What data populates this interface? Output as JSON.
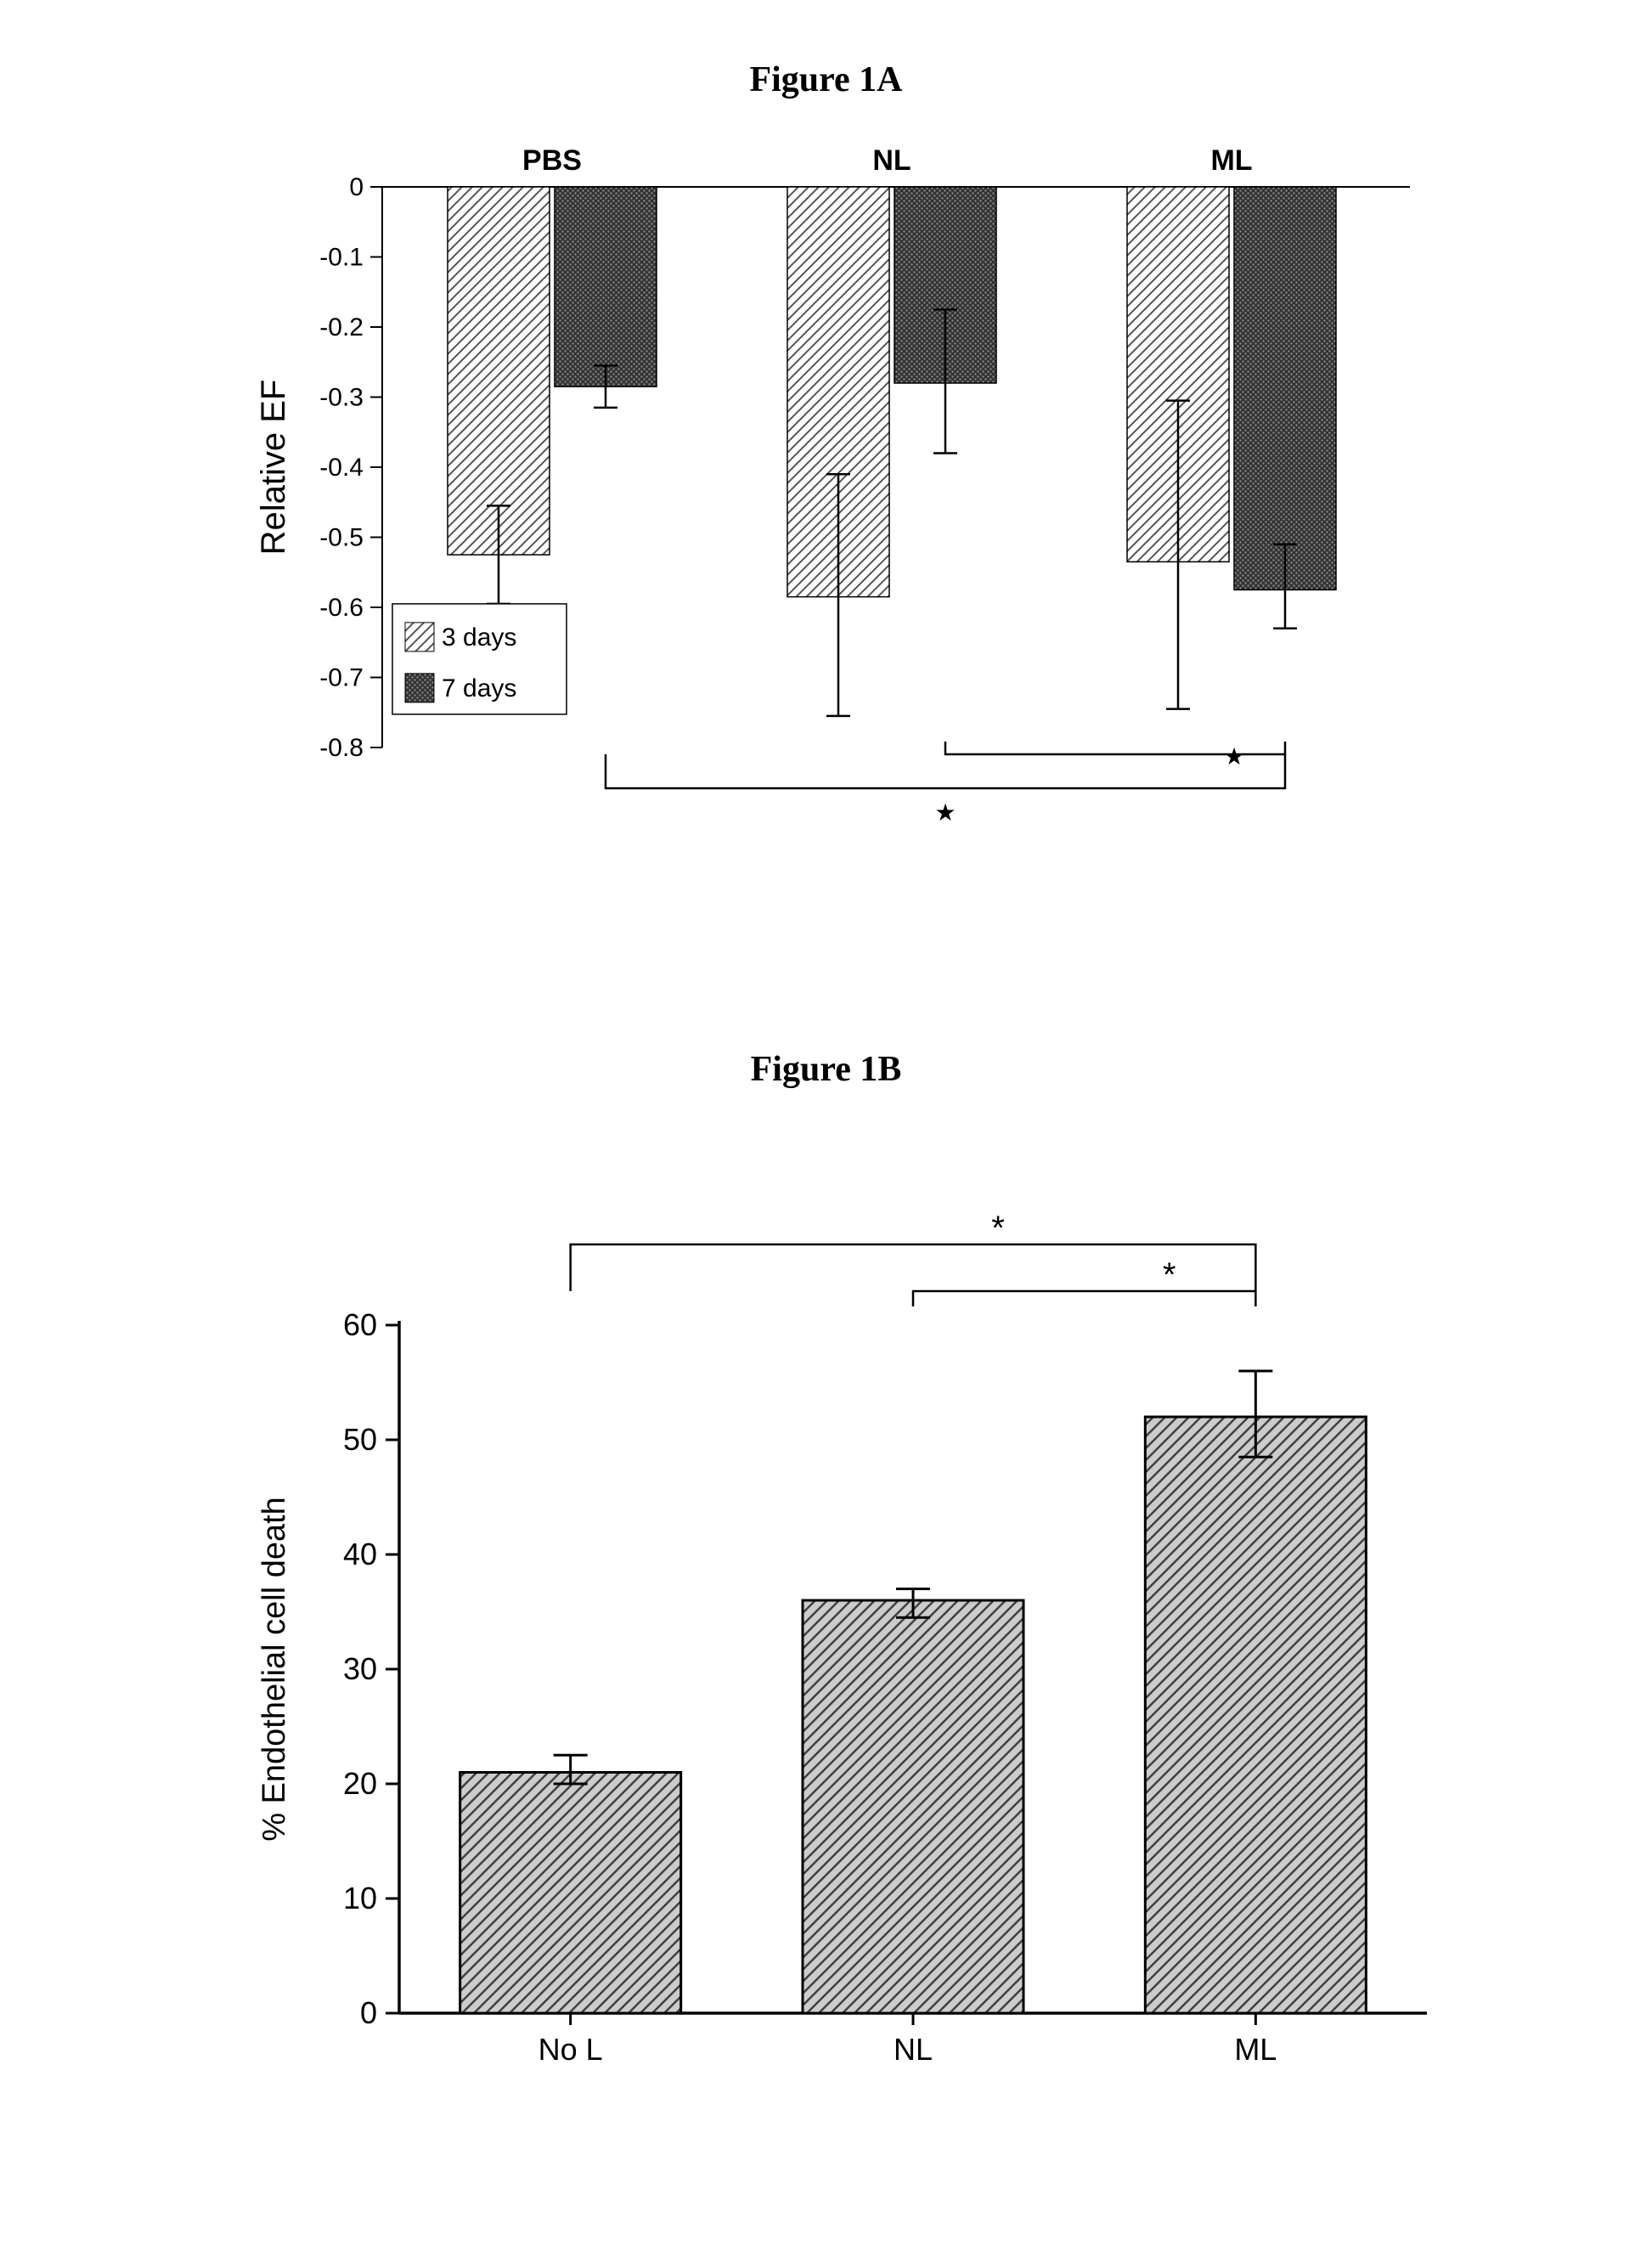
{
  "figureA": {
    "title": "Figure 1A",
    "type": "bar",
    "categories": [
      "PBS",
      "NL",
      "ML"
    ],
    "series": [
      {
        "name": "3 days",
        "values": [
          -0.525,
          -0.585,
          -0.535
        ],
        "errLow": [
          -0.595,
          -0.755,
          -0.745
        ],
        "errHigh": [
          -0.455,
          -0.41,
          -0.305
        ],
        "pattern": "diag-light"
      },
      {
        "name": "7 days",
        "values": [
          -0.285,
          -0.28,
          -0.575
        ],
        "errLow": [
          -0.315,
          -0.38,
          -0.63
        ],
        "errHigh": [
          -0.255,
          -0.175,
          -0.51
        ],
        "pattern": "dot-dark"
      }
    ],
    "ylabel": "Relative EF",
    "ylim": [
      0,
      -0.8
    ],
    "ytick_step": -0.1,
    "category_fontsize": 34,
    "label_fontsize": 40,
    "tick_fontsize": 30,
    "legend_fontsize": 30,
    "background_color": "#ffffff",
    "axis_color": "#000000",
    "pattern_light_bg": "#ffffff",
    "pattern_light_fg": "#555555",
    "pattern_dark_bg": "#333333",
    "pattern_dark_fg": "#777777",
    "sig_marker": "★",
    "sig_brackets": [
      {
        "groups": [
          "NL",
          "ML"
        ],
        "series": "7 days"
      },
      {
        "groups": [
          "PBS",
          "ML"
        ],
        "series": "7 days"
      }
    ]
  },
  "figureB": {
    "title": "Figure 1B",
    "type": "bar",
    "categories": [
      "No L",
      "NL",
      "ML"
    ],
    "values": [
      21,
      36,
      52
    ],
    "errLow": [
      20,
      34.5,
      48.5
    ],
    "errHigh": [
      22.5,
      37,
      56
    ],
    "pattern": "diag-light",
    "ylabel": "% Endothelial cell death",
    "ylim": [
      0,
      60
    ],
    "ytick_step": 10,
    "category_fontsize": 36,
    "label_fontsize": 40,
    "tick_fontsize": 30,
    "background_color": "#ffffff",
    "axis_color": "#000000",
    "pattern_light_bg": "#cccccc",
    "pattern_light_fg": "#404040",
    "sig_marker": "*",
    "sig_brackets": [
      {
        "groups": [
          "NL",
          "ML"
        ]
      },
      {
        "groups": [
          "No L",
          "ML"
        ]
      }
    ]
  }
}
